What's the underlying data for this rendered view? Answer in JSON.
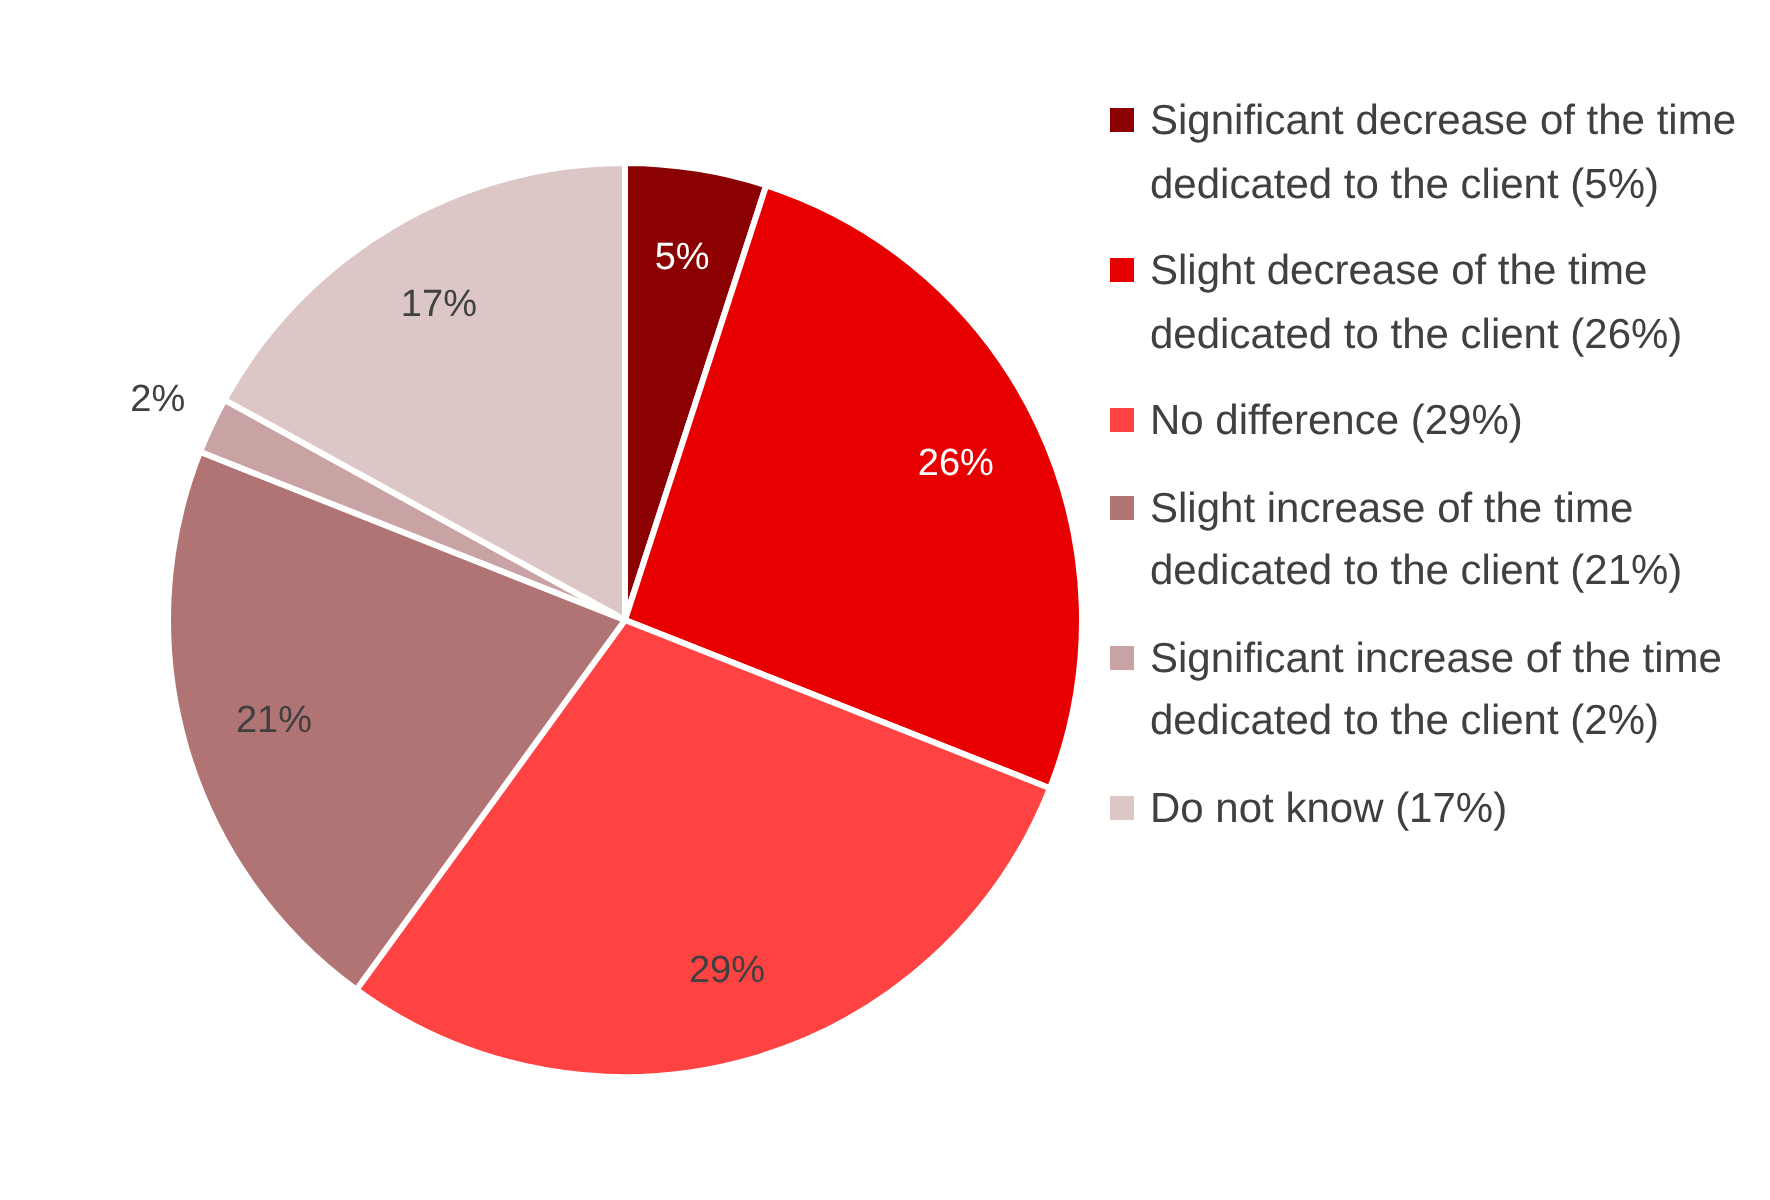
{
  "chart_data": {
    "type": "pie",
    "categories": [
      "Significant decrease of the time dedicated to the client (5%)",
      "Slight decrease of the time dedicated to the client (26%)",
      "No difference (29%)",
      "Slight increase of the time dedicated to the client (21%)",
      "Significant increase of the time dedicated to the client (2%)",
      "Do not know (17%)"
    ],
    "values": [
      5,
      26,
      29,
      21,
      2,
      17
    ],
    "colors": [
      "#8b0000",
      "#e80000",
      "#ff4343",
      "#b07474",
      "#c9a3a3",
      "#dcc6c6"
    ],
    "value_labels": [
      "5%",
      "26%",
      "29%",
      "21%",
      "2%",
      "17%"
    ],
    "legend": "right"
  }
}
